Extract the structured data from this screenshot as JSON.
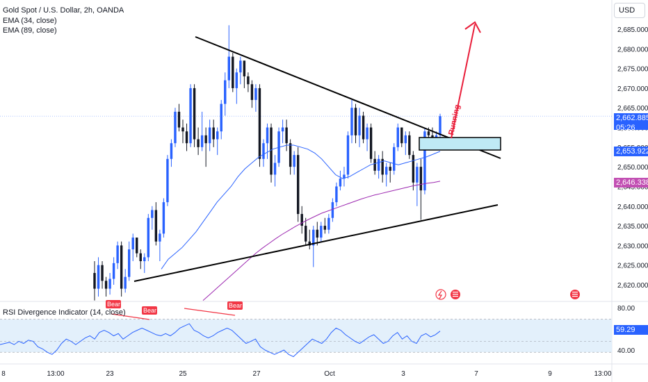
{
  "header": {
    "symbol_title": "Gold Spot / U.S. Dollar, 2h, OANDA",
    "ema1_label": "EMA (34, close)",
    "ema2_label": "EMA (89, close)",
    "currency": "USD"
  },
  "price_tags": {
    "last_price": "2,662.885",
    "countdown": "05:26",
    "ema34_value": "2,653.922",
    "ema89_value": "2,646.338",
    "rsi_value": "59.29"
  },
  "annotations": {
    "running_label": "Running",
    "bear_labels": [
      "Bear",
      "Bear",
      "Bear"
    ]
  },
  "rsi_panel": {
    "title": "RSI Divergence Indicator (14, close)",
    "levels": [
      "80.00",
      "40.00"
    ]
  },
  "colors": {
    "up": "#2962ff",
    "down": "#131722",
    "ema34": "#2962ff",
    "ema89": "#9c27b0",
    "arrow": "#e91e3a",
    "rsi_band": "#e3f0fb",
    "rsi_line": "#2962ff",
    "bear_label": "#f23645"
  },
  "chart_data": {
    "type": "candlestick",
    "ylim": [
      2616,
      2688
    ],
    "y_ticks": [
      "2,685.000",
      "2,680.000",
      "2,675.000",
      "2,670.000",
      "2,665.000",
      "2,660.000",
      "2,655.000",
      "2,650.000",
      "2,645.000",
      "2,640.000",
      "2,635.000",
      "2,630.000",
      "2,625.000",
      "2,620.000"
    ],
    "x_ticks": [
      "8",
      "13:00",
      "23",
      "25",
      "27",
      "Oct",
      "3",
      "7",
      "9",
      "13:00"
    ],
    "ohlc": [
      [
        2623.0,
        2626.0,
        2616.0,
        2619.0
      ],
      [
        2619.0,
        2627.0,
        2617.0,
        2625.0
      ],
      [
        2625.0,
        2626.0,
        2619.0,
        2621.0
      ],
      [
        2621.0,
        2622.0,
        2617.0,
        2619.0
      ],
      [
        2619.0,
        2623.0,
        2617.5,
        2621.5
      ],
      [
        2621.5,
        2627.0,
        2620.0,
        2625.5
      ],
      [
        2625.5,
        2631.0,
        2624.0,
        2630.0
      ],
      [
        2630.0,
        2631.0,
        2617.0,
        2619.0
      ],
      [
        2619.0,
        2624.0,
        2618.0,
        2622.0
      ],
      [
        2622.0,
        2631.0,
        2621.0,
        2629.0
      ],
      [
        2629.0,
        2633.0,
        2626.0,
        2632.0
      ],
      [
        2632.0,
        2632.0,
        2627.0,
        2628.0
      ],
      [
        2628.0,
        2629.0,
        2624.0,
        2626.0
      ],
      [
        2626.0,
        2628.0,
        2623.0,
        2627.0
      ],
      [
        2627.0,
        2638.0,
        2626.0,
        2637.0
      ],
      [
        2637.0,
        2640.0,
        2634.0,
        2639.0
      ],
      [
        2639.0,
        2641.0,
        2630.0,
        2631.0
      ],
      [
        2631.0,
        2634.0,
        2626.0,
        2633.0
      ],
      [
        2633.0,
        2642.0,
        2632.0,
        2641.0
      ],
      [
        2641.0,
        2653.0,
        2640.0,
        2652.0
      ],
      [
        2652.0,
        2657.0,
        2650.0,
        2656.0
      ],
      [
        2656.0,
        2665.0,
        2655.0,
        2664.0
      ],
      [
        2664.0,
        2666.0,
        2659.0,
        2660.0
      ],
      [
        2660.0,
        2662.0,
        2656.0,
        2659.0
      ],
      [
        2659.0,
        2661.0,
        2654.0,
        2656.0
      ],
      [
        2656.0,
        2671.0,
        2655.0,
        2670.0
      ],
      [
        2670.0,
        2671.0,
        2655.0,
        2657.0
      ],
      [
        2657.0,
        2660.0,
        2653.0,
        2655.0
      ],
      [
        2655.0,
        2664.0,
        2654.0,
        2658.0
      ],
      [
        2658.0,
        2660.0,
        2650.0,
        2656.0
      ],
      [
        2656.0,
        2662.0,
        2654.0,
        2660.0
      ],
      [
        2660.0,
        2662.0,
        2655.0,
        2657.0
      ],
      [
        2657.0,
        2660.0,
        2653.0,
        2659.0
      ],
      [
        2659.0,
        2667.0,
        2657.0,
        2666.0
      ],
      [
        2666.0,
        2674.0,
        2663.0,
        2672.0
      ],
      [
        2672.0,
        2686.0,
        2670.0,
        2678.0
      ],
      [
        2678.0,
        2679.0,
        2669.0,
        2670.0
      ],
      [
        2670.0,
        2675.0,
        2666.0,
        2674.0
      ],
      [
        2674.0,
        2678.0,
        2671.0,
        2677.0
      ],
      [
        2677.0,
        2677.0,
        2670.0,
        2673.0
      ],
      [
        2673.0,
        2674.0,
        2669.0,
        2671.0
      ],
      [
        2671.0,
        2672.0,
        2665.0,
        2667.0
      ],
      [
        2667.0,
        2671.0,
        2664.0,
        2670.0
      ],
      [
        2670.0,
        2671.0,
        2650.0,
        2652.0
      ],
      [
        2652.0,
        2657.0,
        2650.0,
        2656.0
      ],
      [
        2656.0,
        2661.0,
        2652.0,
        2660.0
      ],
      [
        2660.0,
        2661.0,
        2646.0,
        2648.0
      ],
      [
        2648.0,
        2653.0,
        2645.0,
        2651.0
      ],
      [
        2651.0,
        2660.0,
        2650.0,
        2659.0
      ],
      [
        2659.0,
        2662.0,
        2656.0,
        2660.0
      ],
      [
        2660.0,
        2662.0,
        2654.0,
        2656.0
      ],
      [
        2656.0,
        2657.0,
        2648.0,
        2650.0
      ],
      [
        2650.0,
        2654.0,
        2648.0,
        2653.0
      ],
      [
        2653.0,
        2655.0,
        2636.0,
        2638.0
      ],
      [
        2638.0,
        2640.0,
        2633.0,
        2635.0
      ],
      [
        2635.0,
        2637.0,
        2630.0,
        2631.0
      ],
      [
        2631.0,
        2634.0,
        2629.0,
        2630.0
      ],
      [
        2630.0,
        2635.0,
        2624.5,
        2634.0
      ],
      [
        2634.0,
        2636.0,
        2630.0,
        2632.0
      ],
      [
        2632.0,
        2636.0,
        2631.0,
        2635.0
      ],
      [
        2635.0,
        2637.0,
        2633.0,
        2634.0
      ],
      [
        2634.0,
        2638.0,
        2633.0,
        2637.0
      ],
      [
        2637.0,
        2642.0,
        2636.0,
        2641.0
      ],
      [
        2641.0,
        2646.0,
        2640.0,
        2645.0
      ],
      [
        2645.0,
        2649.0,
        2644.0,
        2647.0
      ],
      [
        2647.0,
        2650.0,
        2645.0,
        2648.0
      ],
      [
        2648.0,
        2659.0,
        2647.0,
        2658.0
      ],
      [
        2658.0,
        2667.0,
        2656.0,
        2665.0
      ],
      [
        2665.0,
        2666.0,
        2656.0,
        2658.0
      ],
      [
        2658.0,
        2665.0,
        2655.0,
        2663.0
      ],
      [
        2663.0,
        2664.0,
        2656.0,
        2657.0
      ],
      [
        2657.0,
        2661.0,
        2654.0,
        2660.0
      ],
      [
        2660.0,
        2661.0,
        2651.0,
        2652.0
      ],
      [
        2652.0,
        2654.0,
        2648.0,
        2649.0
      ],
      [
        2649.0,
        2653.0,
        2647.0,
        2652.0
      ],
      [
        2652.0,
        2654.0,
        2646.0,
        2648.0
      ],
      [
        2648.0,
        2651.0,
        2645.0,
        2650.0
      ],
      [
        2650.0,
        2651.0,
        2646.0,
        2649.0
      ],
      [
        2649.0,
        2656.0,
        2648.0,
        2655.0
      ],
      [
        2655.0,
        2661.0,
        2654.0,
        2660.0
      ],
      [
        2660.0,
        2660.0,
        2655.0,
        2656.0
      ],
      [
        2656.0,
        2659.0,
        2653.0,
        2658.0
      ],
      [
        2658.0,
        2659.0,
        2652.0,
        2653.0
      ],
      [
        2653.0,
        2654.0,
        2644.0,
        2646.0
      ],
      [
        2646.0,
        2651.0,
        2640.0,
        2650.0
      ],
      [
        2650.0,
        2652.0,
        2636.5,
        2644.0
      ],
      [
        2644.0,
        2660.0,
        2643.0,
        2659.0
      ],
      [
        2659.0,
        2660.0,
        2655.0,
        2658.0
      ],
      [
        2658.0,
        2660.0,
        2656.0,
        2657.0
      ],
      [
        2657.0,
        2659.0,
        2656.0,
        2658.0
      ],
      [
        2658.0,
        2663.5,
        2656.5,
        2662.885
      ]
    ],
    "ema34": [
      2624.0,
      2626.5,
      2628.0,
      2629.5,
      2631.5,
      2633.5,
      2636.0,
      2638.5,
      2641.0,
      2643.0,
      2645.0,
      2647.5,
      2649.5,
      2651.0,
      2652.5,
      2653.5,
      2654.5,
      2655.0,
      2655.5,
      2655.5,
      2655.0,
      2654.5,
      2653.5,
      2652.0,
      2650.0,
      2648.0,
      2647.0,
      2647.5,
      2648.5,
      2649.5,
      2650.5,
      2651.0,
      2651.5,
      2651.0,
      2650.5,
      2651.0,
      2651.5,
      2652.0,
      2652.5,
      2653.2,
      2653.922
    ],
    "ema89": [
      2616.0,
      2617.5,
      2619.0,
      2620.5,
      2622.0,
      2623.5,
      2625.0,
      2626.5,
      2628.0,
      2629.3,
      2630.5,
      2631.7,
      2632.8,
      2633.8,
      2634.8,
      2635.7,
      2636.6,
      2637.4,
      2638.2,
      2638.8,
      2639.4,
      2640.0,
      2640.6,
      2641.2,
      2641.8,
      2642.3,
      2642.8,
      2643.2,
      2643.6,
      2644.0,
      2644.4,
      2644.8,
      2645.2,
      2645.5,
      2645.8,
      2646.0,
      2646.338
    ],
    "rsi": [
      47,
      48,
      49,
      47,
      50,
      48,
      51,
      50,
      45,
      43,
      40,
      38,
      42,
      48,
      52,
      50,
      47,
      50,
      53,
      55,
      52,
      58,
      60,
      58,
      55,
      57,
      52,
      55,
      58,
      60,
      62,
      60,
      58,
      56,
      55,
      57,
      55,
      58,
      62,
      64,
      66,
      60,
      58,
      55,
      53,
      55,
      58,
      60,
      62,
      60,
      56,
      52,
      48,
      50,
      52,
      45,
      42,
      40,
      38,
      40,
      42,
      38,
      36,
      40,
      44,
      48,
      52,
      50,
      48,
      52,
      58,
      62,
      60,
      56,
      53,
      50,
      48,
      51,
      54,
      56,
      52,
      48,
      50,
      55,
      58,
      52,
      55,
      50,
      48,
      55,
      57,
      54,
      56,
      59.29
    ],
    "rsi_ylim": [
      30,
      85
    ]
  }
}
